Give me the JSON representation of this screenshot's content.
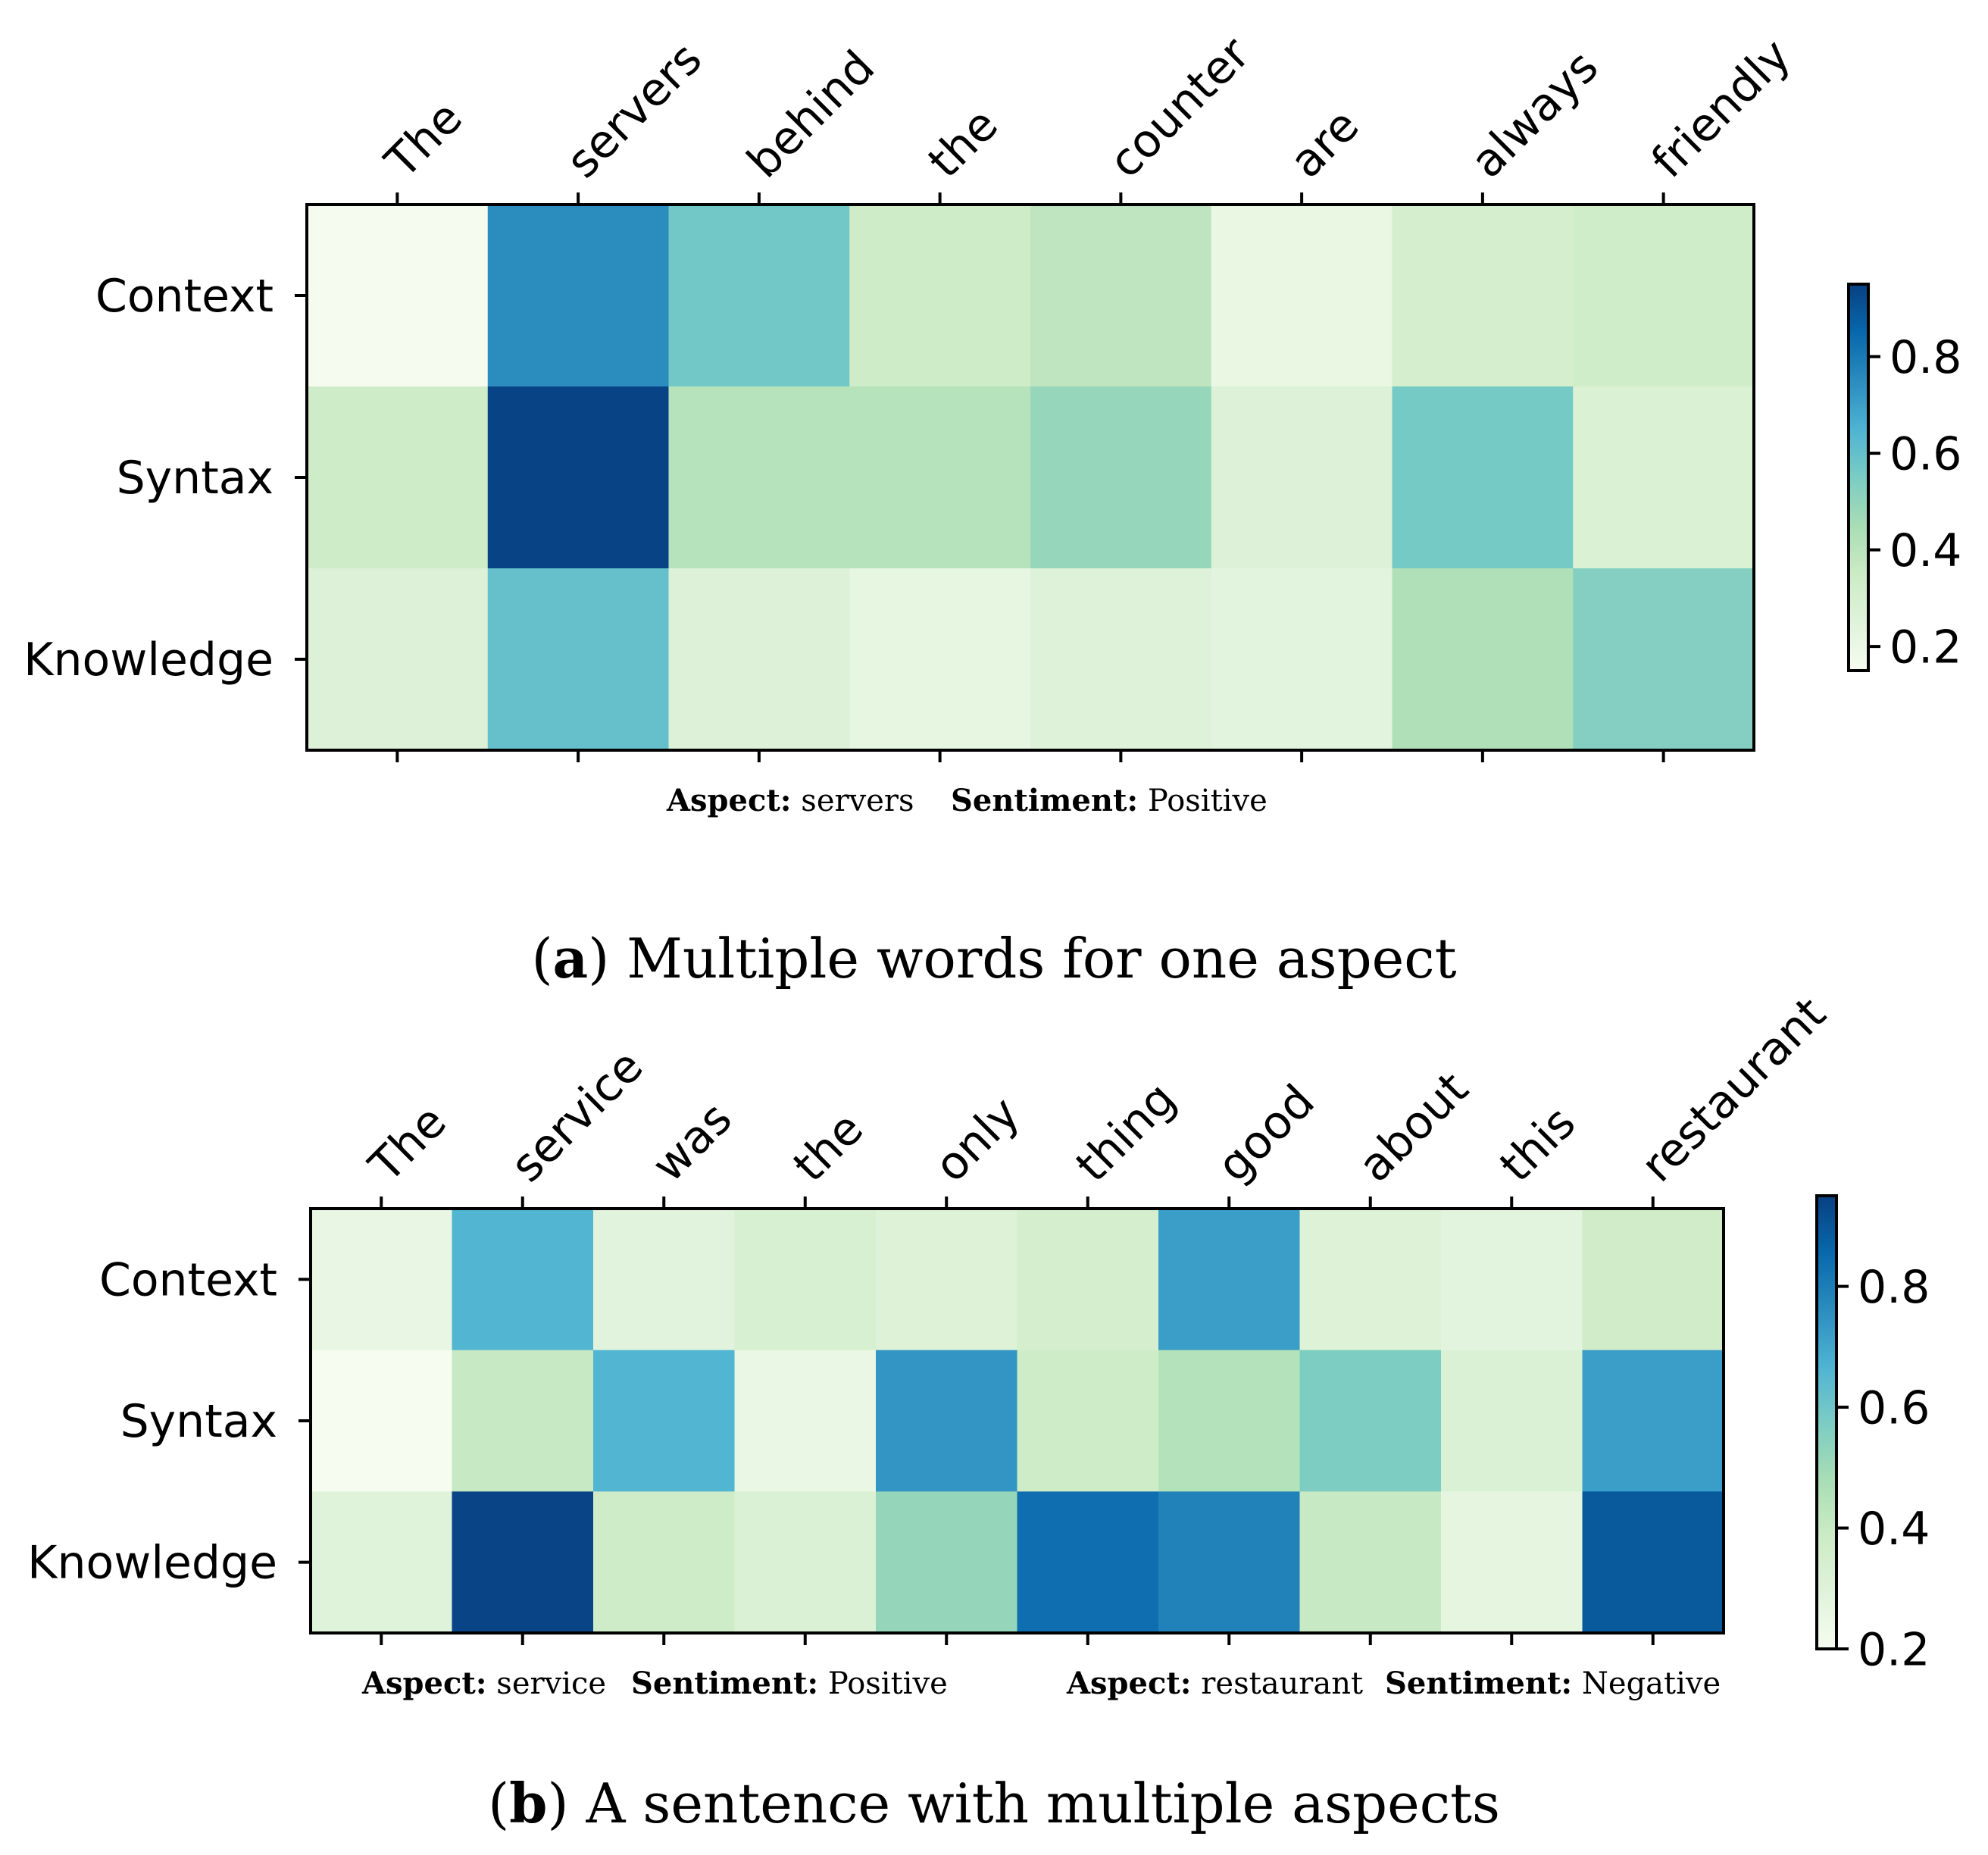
{
  "chart_data": [
    {
      "type": "heatmap",
      "columns": [
        "The",
        "servers",
        "behind",
        "the",
        "counter",
        "are",
        "always",
        "friendly"
      ],
      "rows": [
        "Context",
        "Syntax",
        "Knowledge"
      ],
      "values": [
        [
          0.16,
          0.75,
          0.57,
          0.34,
          0.39,
          0.21,
          0.31,
          0.33
        ],
        [
          0.34,
          0.94,
          0.41,
          0.41,
          0.49,
          0.27,
          0.56,
          0.28
        ],
        [
          0.27,
          0.6,
          0.27,
          0.22,
          0.26,
          0.24,
          0.43,
          0.53
        ]
      ],
      "colorbar": {
        "range": [
          0.15,
          0.95
        ],
        "ticks": [
          "0.2",
          "0.4",
          "0.6",
          "0.8"
        ]
      },
      "annotation": {
        "aspect_label": "Aspect:",
        "aspect_value": "servers",
        "sentiment_label": "Sentiment:",
        "sentiment_value": "Positive"
      },
      "caption": {
        "label": "a",
        "text": "Multiple words for one aspect"
      }
    },
    {
      "type": "heatmap",
      "columns": [
        "The",
        "service",
        "was",
        "the",
        "only",
        "thing",
        "good",
        "about",
        "this",
        "restaurant"
      ],
      "rows": [
        "Context",
        "Syntax",
        "Knowledge"
      ],
      "values": [
        [
          0.26,
          0.66,
          0.29,
          0.33,
          0.31,
          0.35,
          0.72,
          0.31,
          0.28,
          0.37
        ],
        [
          0.2,
          0.4,
          0.66,
          0.25,
          0.74,
          0.38,
          0.45,
          0.57,
          0.32,
          0.72
        ],
        [
          0.3,
          0.94,
          0.38,
          0.32,
          0.52,
          0.84,
          0.79,
          0.4,
          0.27,
          0.89
        ]
      ],
      "colorbar": {
        "range": [
          0.2,
          0.95
        ],
        "ticks": [
          "0.2",
          "0.4",
          "0.6",
          "0.8"
        ]
      },
      "annotation": {
        "aspect1_label": "Aspect:",
        "aspect1_value": "service",
        "sentiment1_label": "Sentiment:",
        "sentiment1_value": "Positive",
        "aspect2_label": "Aspect:",
        "aspect2_value": "restaurant",
        "sentiment2_label": "Sentiment:",
        "sentiment2_value": "Negative"
      },
      "caption": {
        "label": "b",
        "text": "A sentence with multiple aspects"
      }
    }
  ]
}
